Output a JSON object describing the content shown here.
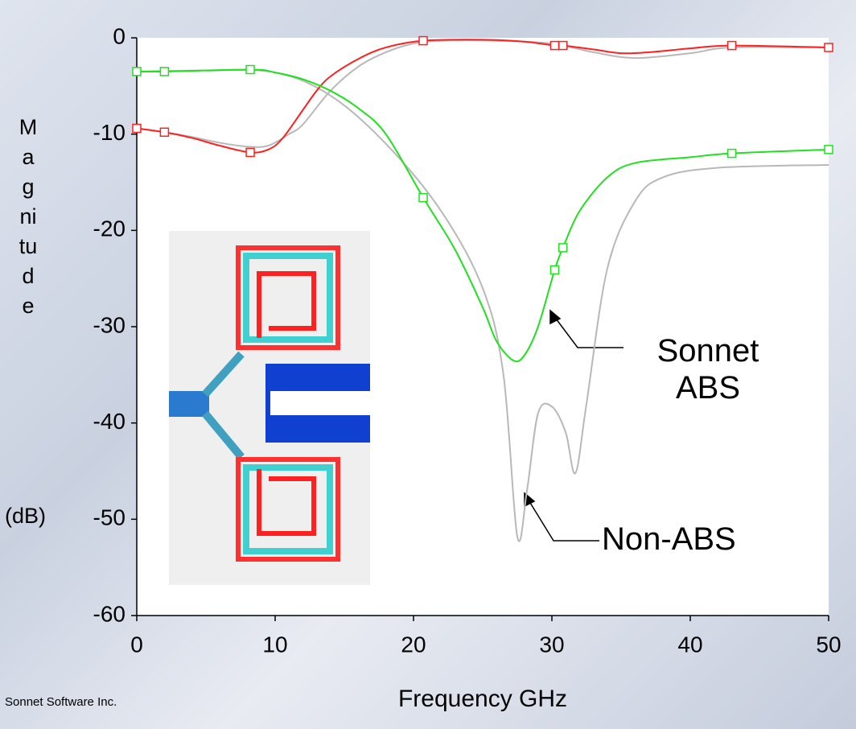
{
  "chart_data": {
    "type": "line",
    "x_label": "Frequency GHz",
    "y_label": "Magnitude",
    "y_label_unit": "(dB)",
    "annotations": [
      "Sonnet ABS",
      "Non-ABS"
    ],
    "credit": "Sonnet Software Inc.",
    "xlim": [
      0,
      50
    ],
    "xticks": [
      0,
      10,
      20,
      30,
      40,
      50
    ],
    "ylim": [
      -60,
      0
    ],
    "yticks": [
      0,
      -10,
      -20,
      -30,
      -40,
      -50,
      -60
    ],
    "series": [
      {
        "color": "#b8b8b8",
        "line": true,
        "x": [
          0,
          2,
          4,
          6,
          8,
          9.5,
          11,
          12,
          14,
          16,
          18,
          20,
          22,
          26,
          30,
          33,
          36,
          40,
          43,
          50
        ],
        "values": [
          -9.4,
          -9.8,
          -10.3,
          -10.9,
          -11.3,
          -11.2,
          -10,
          -9,
          -5.5,
          -3,
          -1.5,
          -0.6,
          -0.3,
          -0.3,
          -0.6,
          -1.5,
          -2.1,
          -1.6,
          -1,
          -1
        ]
      },
      {
        "color": "#b8b8b8",
        "line": true,
        "x": [
          0,
          5,
          10,
          14,
          18,
          22,
          25,
          26.5,
          27.5,
          28.2,
          29,
          30,
          31,
          31.7,
          32.5,
          34,
          36,
          38,
          42,
          50
        ],
        "values": [
          -3.5,
          -3.4,
          -3.6,
          -6,
          -11,
          -18,
          -26,
          -35,
          -51.8,
          -47,
          -39,
          -38.3,
          -41,
          -45.2,
          -38,
          -24,
          -17,
          -14.5,
          -13.5,
          -13.2
        ]
      },
      {
        "color": "#ff2020",
        "line": true,
        "x": [
          0,
          2,
          4,
          6,
          8.2,
          9.5,
          10.5,
          12,
          13,
          14,
          16,
          18,
          20.7,
          25,
          28,
          30.2,
          30.8,
          33,
          35,
          37,
          40,
          43,
          50
        ],
        "values": [
          -9.4,
          -9.8,
          -10.4,
          -11.2,
          -11.9,
          -11.6,
          -10.5,
          -7.5,
          -5.5,
          -4,
          -2.2,
          -1,
          -0.3,
          -0.2,
          -0.4,
          -0.8,
          -0.8,
          -1.2,
          -1.6,
          -1.5,
          -1.1,
          -0.8,
          -1
        ]
      },
      {
        "color": "#ff2020",
        "line": false,
        "marker": "square",
        "x": [
          0,
          2,
          8.2,
          20.7,
          30.2,
          30.8,
          43,
          50
        ],
        "values": [
          -9.4,
          -9.8,
          -11.9,
          -0.3,
          -0.8,
          -0.8,
          -0.8,
          -1
        ]
      },
      {
        "color": "#20e020",
        "line": true,
        "x": [
          0,
          2,
          8.2,
          10,
          12,
          14,
          16,
          18,
          20.7,
          23,
          25,
          26,
          27.2,
          28,
          29,
          30.2,
          30.8,
          32,
          34,
          36,
          40,
          43,
          50
        ],
        "values": [
          -3.5,
          -3.5,
          -3.3,
          -3.6,
          -4.3,
          -5.5,
          -7.3,
          -10,
          -16.6,
          -22,
          -28,
          -31.5,
          -33.5,
          -33,
          -30,
          -24.1,
          -21.8,
          -18,
          -14.5,
          -13,
          -12.4,
          -12,
          -11.6
        ]
      },
      {
        "color": "#20e020",
        "line": false,
        "marker": "square",
        "x": [
          0,
          2,
          8.2,
          20.7,
          30.2,
          30.8,
          43,
          50
        ],
        "values": [
          -3.5,
          -3.5,
          -3.3,
          -16.6,
          -24.1,
          -21.8,
          -12,
          -11.6
        ]
      }
    ]
  }
}
